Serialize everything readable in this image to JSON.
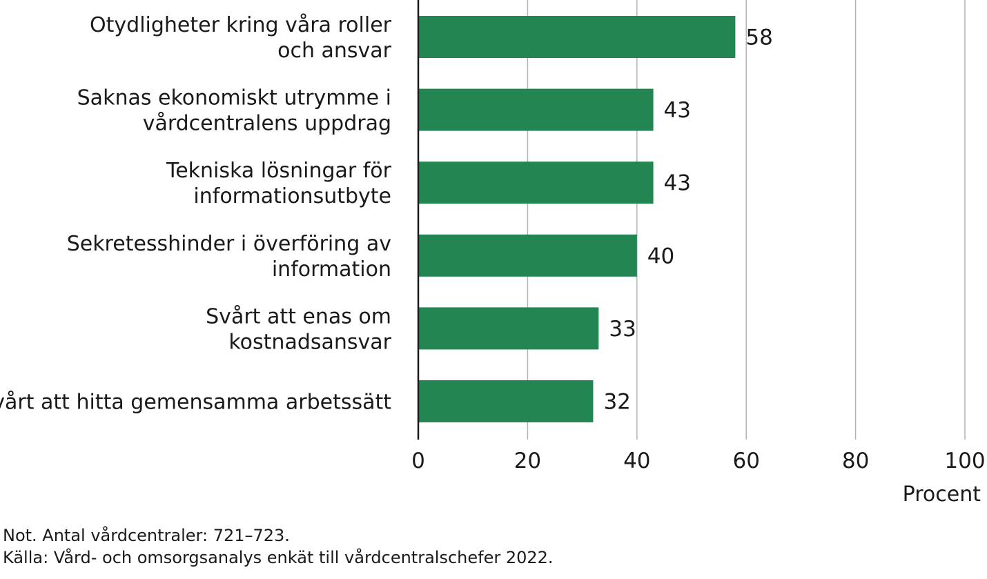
{
  "chart_data": {
    "type": "bar",
    "orientation": "horizontal",
    "categories": [
      [
        "Otydligheter kring våra roller",
        "och ansvar"
      ],
      [
        "Saknas ekonomiskt utrymme i",
        "vårdcentralens uppdrag"
      ],
      [
        "Tekniska lösningar för",
        "informationsutbyte"
      ],
      [
        "Sekretesshinder i överföring av",
        "information"
      ],
      [
        "Svårt att enas om",
        "kostnadsansvar"
      ],
      [
        "Svårt att hitta gemensamma arbetssätt"
      ]
    ],
    "values": [
      58,
      43,
      43,
      40,
      33,
      32
    ],
    "data_labels": [
      "58",
      "43",
      "43",
      "40",
      "33",
      "32"
    ],
    "xlim": [
      0,
      100
    ],
    "xticks": [
      0,
      20,
      40,
      60,
      80,
      100
    ],
    "xtick_labels": [
      "0",
      "20",
      "40",
      "60",
      "80",
      "100"
    ],
    "xlabel": "Procent",
    "grid": "vertical",
    "colors": {
      "bar": "#238551",
      "grid": "#b3b3b3",
      "axis": "#1a1a1a"
    }
  },
  "notes": {
    "note": "Not. Antal vårdcentraler: 721–723.",
    "source": "Källa: Vård- och omsorgsanalys enkät till vårdcentralschefer 2022."
  }
}
